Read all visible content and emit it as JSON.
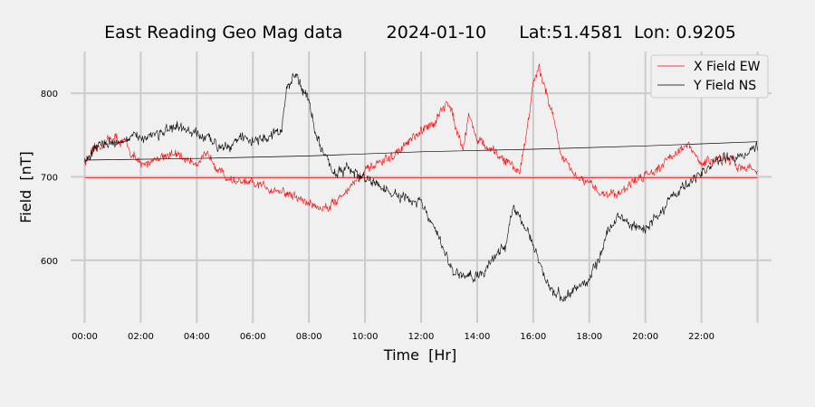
{
  "chart_data": {
    "type": "line",
    "title": "East Reading Geo Mag data        2024-01-10      Lat:51.4581  Lon: 0.9205",
    "xlabel": "Time  [Hr]",
    "ylabel": "Field  [nT]",
    "xlim": [
      -0.5,
      24.5
    ],
    "ylim": [
      525,
      850
    ],
    "x_ticks": [
      {
        "h": 0,
        "label": "00:00"
      },
      {
        "h": 2,
        "label": "02:00"
      },
      {
        "h": 4,
        "label": "04:00"
      },
      {
        "h": 6,
        "label": "06:00"
      },
      {
        "h": 8,
        "label": "08:00"
      },
      {
        "h": 10,
        "label": "10:00"
      },
      {
        "h": 12,
        "label": "12:00"
      },
      {
        "h": 14,
        "label": "14:00"
      },
      {
        "h": 16,
        "label": "16:00"
      },
      {
        "h": 18,
        "label": "18:00"
      },
      {
        "h": 20,
        "label": "20:00"
      },
      {
        "h": 22,
        "label": "22:00"
      }
    ],
    "extra_x_gridlines": [
      24
    ],
    "y_ticks": [
      600,
      700,
      800
    ],
    "grid": true,
    "legend_position": "top-right",
    "series": [
      {
        "name": "X Field EW",
        "color": "#ff0000",
        "noise": 7,
        "x": [
          0,
          0.5,
          1,
          1.5,
          2,
          2.5,
          3,
          3.5,
          4,
          4.5,
          5,
          5.5,
          6,
          6.5,
          7,
          7.5,
          8,
          8.5,
          9,
          9.5,
          10,
          10.5,
          11,
          11.5,
          12,
          12.5,
          13,
          13.3,
          13.5,
          13.7,
          14,
          14.5,
          15,
          15.3,
          15.5,
          15.7,
          16,
          16.2,
          16.5,
          16.8,
          17,
          17.5,
          18,
          18.5,
          19,
          19.5,
          20,
          20.5,
          21,
          21.5,
          22,
          22.5,
          23,
          23.5,
          24
        ],
        "y": [
          718,
          735,
          748,
          738,
          712,
          722,
          728,
          722,
          718,
          725,
          700,
          693,
          690,
          688,
          683,
          676,
          668,
          662,
          672,
          690,
          705,
          716,
          724,
          740,
          752,
          768,
          790,
          755,
          735,
          775,
          745,
          730,
          720,
          712,
          705,
          740,
          812,
          828,
          800,
          760,
          725,
          700,
          690,
          680,
          680,
          692,
          703,
          712,
          728,
          737,
          715,
          722,
          718,
          712,
          708
        ]
      },
      {
        "name": "X Field EW baseline",
        "color": "#ff0000",
        "noise": 0,
        "x": [
          0,
          24
        ],
        "y": [
          699,
          699
        ]
      },
      {
        "name": "Y Field NS",
        "color": "#000000",
        "noise": 8,
        "x": [
          0,
          0.5,
          1,
          1.5,
          2,
          2.5,
          3,
          3.5,
          4,
          4.5,
          5,
          5.5,
          6,
          6.5,
          7,
          7.2,
          7.4,
          7.6,
          8,
          8.3,
          8.6,
          9,
          9.5,
          10,
          10.5,
          11,
          11.5,
          12,
          12.5,
          13,
          13.5,
          14,
          14.3,
          14.6,
          15,
          15.3,
          15.6,
          16,
          16.3,
          16.6,
          17,
          17.3,
          17.6,
          18,
          18.3,
          18.6,
          19,
          19.5,
          20,
          20.5,
          21,
          21.5,
          22,
          22.5,
          23,
          23.5,
          24
        ],
        "y": [
          718,
          738,
          742,
          743,
          748,
          752,
          755,
          757,
          750,
          742,
          738,
          746,
          744,
          746,
          752,
          800,
          818,
          822,
          790,
          745,
          720,
          705,
          708,
          697,
          690,
          678,
          672,
          668,
          635,
          595,
          578,
          582,
          590,
          605,
          615,
          668,
          650,
          615,
          590,
          568,
          555,
          560,
          566,
          580,
          595,
          628,
          655,
          640,
          638,
          655,
          680,
          690,
          705,
          718,
          722,
          728,
          738
        ]
      },
      {
        "name": "Y Field NS trend",
        "color": "#000000",
        "noise": 0,
        "x": [
          0,
          4,
          8,
          12,
          16,
          20,
          24
        ],
        "y": [
          720,
          722,
          725,
          730,
          733,
          737,
          742
        ]
      }
    ],
    "legend": [
      {
        "label": "X Field EW",
        "color": "#ff0000"
      },
      {
        "label": "Y Field NS",
        "color": "#000000"
      }
    ]
  }
}
